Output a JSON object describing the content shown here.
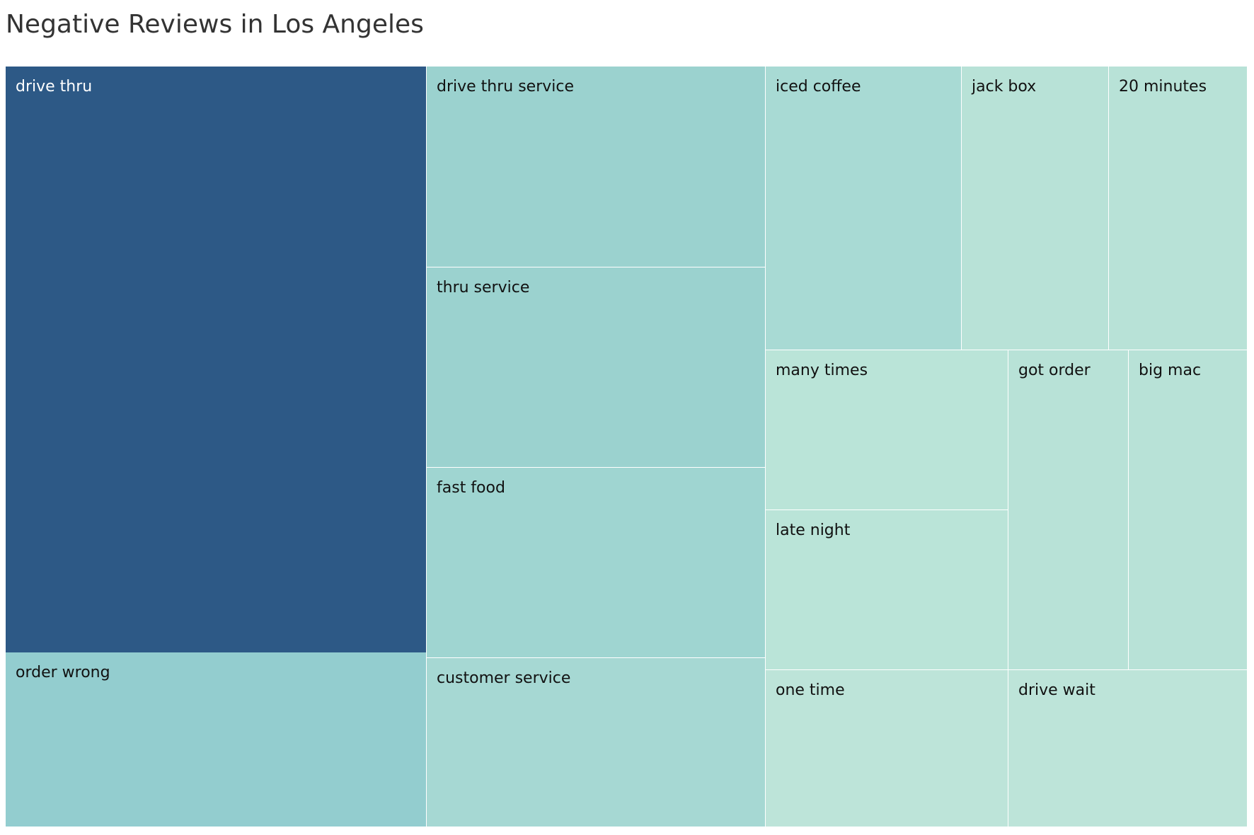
{
  "chart_data": {
    "type": "treemap",
    "title": "Negative Reviews in Los Angeles",
    "items": [
      {
        "label": "drive thru",
        "value": 385,
        "color": "#2d5986"
      },
      {
        "label": "order wrong",
        "value": 114,
        "color": "#93cdcf"
      },
      {
        "label": "drive thru service",
        "value": 104,
        "color": "#9bd2cf"
      },
      {
        "label": "thru service",
        "value": 104,
        "color": "#9bd2cf"
      },
      {
        "label": "fast food",
        "value": 99,
        "color": "#9fd5d1"
      },
      {
        "label": "customer service",
        "value": 88,
        "color": "#a6d8d3"
      },
      {
        "label": "iced coffee",
        "value": 68,
        "color": "#a8dad4"
      },
      {
        "label": "jack box",
        "value": 51,
        "color": "#b8e2d7"
      },
      {
        "label": "20 minutes",
        "value": 49,
        "color": "#b8e2d7"
      },
      {
        "label": "many times",
        "value": 47,
        "color": "#bae4d8"
      },
      {
        "label": "late night",
        "value": 47,
        "color": "#bae4d8"
      },
      {
        "label": "got order",
        "value": 47,
        "color": "#b8e2d7"
      },
      {
        "label": "big mac",
        "value": 47,
        "color": "#b8e2d7"
      },
      {
        "label": "one time",
        "value": 47,
        "color": "#bde4d9"
      },
      {
        "label": "drive wait",
        "value": 47,
        "color": "#bde4d9"
      }
    ]
  }
}
